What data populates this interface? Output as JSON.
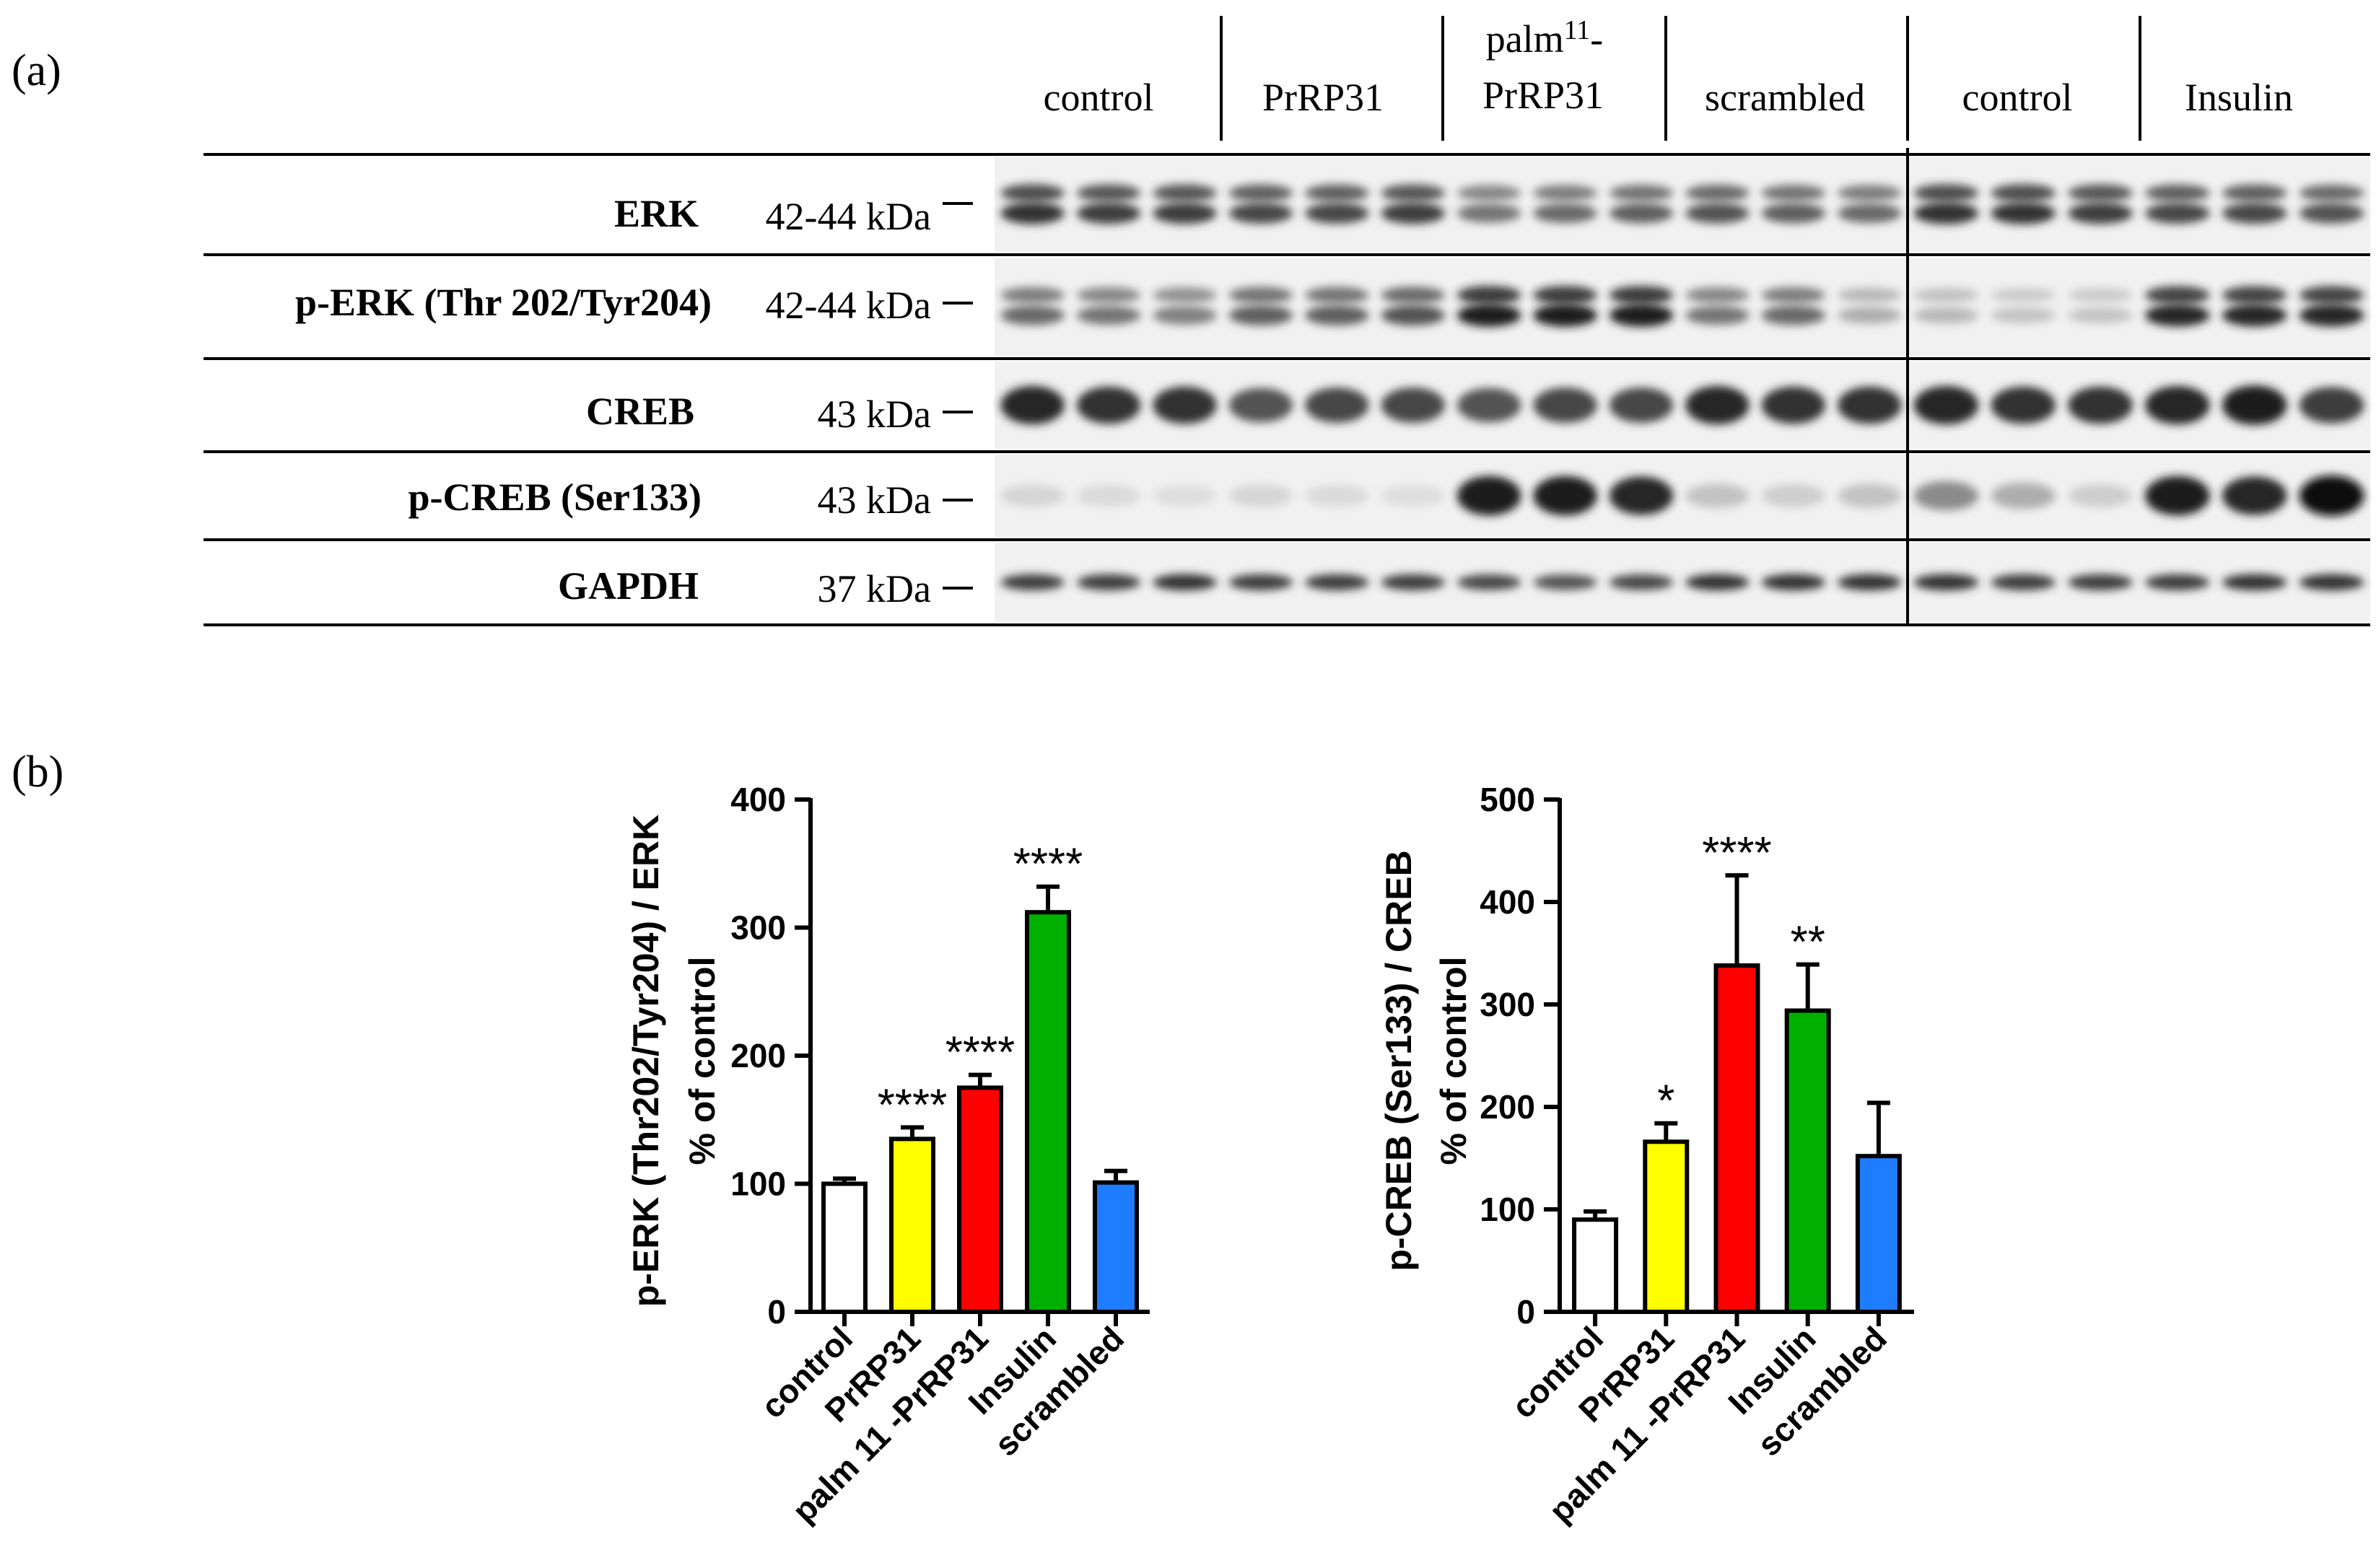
{
  "panel_a": {
    "label": "(a)",
    "groups": [
      {
        "label": "control"
      },
      {
        "label": "PrRP31"
      },
      {
        "label_prefix": "palm",
        "label_sup": "11",
        "label_suffix": "-",
        "label_line2": "PrRP31"
      },
      {
        "label": "scrambled"
      },
      {
        "label": "control"
      },
      {
        "label": "Insulin"
      }
    ],
    "rows": [
      {
        "name": "ERK",
        "mw": "42-44 kDa"
      },
      {
        "name": "p-ERK (Thr 202/Tyr204)",
        "mw": "42-44 kDa"
      },
      {
        "name": "CREB",
        "mw": "43 kDa"
      },
      {
        "name": "p-CREB (Ser133)",
        "mw": "43 kDa"
      },
      {
        "name": "GAPDH",
        "mw": "37 kDa"
      }
    ],
    "band_intensity": [
      [
        0.85,
        0.8,
        0.8,
        0.75,
        0.75,
        0.8,
        0.55,
        0.6,
        0.65,
        0.7,
        0.65,
        0.6,
        0.85,
        0.85,
        0.8,
        0.75,
        0.75,
        0.7
      ],
      [
        0.6,
        0.55,
        0.5,
        0.65,
        0.65,
        0.7,
        0.95,
        0.95,
        0.95,
        0.55,
        0.6,
        0.3,
        0.25,
        0.2,
        0.2,
        0.9,
        0.9,
        0.9
      ],
      [
        0.9,
        0.85,
        0.85,
        0.7,
        0.75,
        0.75,
        0.7,
        0.75,
        0.75,
        0.9,
        0.85,
        0.85,
        0.9,
        0.85,
        0.85,
        0.9,
        0.95,
        0.8
      ],
      [
        0.12,
        0.1,
        0.08,
        0.12,
        0.1,
        0.08,
        0.95,
        0.95,
        0.9,
        0.2,
        0.15,
        0.2,
        0.45,
        0.3,
        0.15,
        0.95,
        0.9,
        1.0
      ],
      [
        0.8,
        0.8,
        0.85,
        0.8,
        0.8,
        0.8,
        0.75,
        0.7,
        0.75,
        0.85,
        0.85,
        0.85,
        0.85,
        0.8,
        0.8,
        0.8,
        0.85,
        0.85
      ]
    ]
  },
  "panel_b": {
    "label": "(b)"
  },
  "colors": {
    "control": "#ffffff",
    "PrRP31": "#ffff00",
    "palm11-PrRP31": "#ff0000",
    "Insulin": "#00b000",
    "scrambled": "#1e7cff"
  },
  "chart_data": [
    {
      "type": "bar",
      "ylabel_line1": "p-ERK (Thr202/Tyr204) / ERK",
      "ylabel_line2": "% of control",
      "ylim": [
        0,
        400
      ],
      "yticks": [
        "0",
        "100",
        "200",
        "300",
        "400"
      ],
      "ytick_values": [
        0,
        100,
        200,
        300,
        400
      ],
      "categories": [
        "control",
        "PrRP31",
        "palm 11 -PrRP31",
        "Insulin",
        "scrambled"
      ],
      "values": [
        100,
        135,
        175,
        312,
        101
      ],
      "errors": [
        4,
        9,
        10,
        20,
        9
      ],
      "significance": [
        "",
        "****",
        "****",
        "****",
        ""
      ]
    },
    {
      "type": "bar",
      "ylabel_line1": "p-CREB (Ser133) / CREB",
      "ylabel_line2": "% of control",
      "ylim": [
        0,
        500
      ],
      "yticks": [
        "0",
        "100",
        "200",
        "300",
        "400",
        "500"
      ],
      "ytick_values": [
        0,
        100,
        200,
        300,
        400,
        500
      ],
      "categories": [
        "control",
        "PrRP31",
        "palm 11 -PrRP31",
        "Insulin",
        "scrambled"
      ],
      "values": [
        90,
        166,
        338,
        294,
        152
      ],
      "errors": [
        8,
        18,
        88,
        45,
        52
      ],
      "significance": [
        "",
        "*",
        "****",
        "**",
        ""
      ]
    }
  ]
}
